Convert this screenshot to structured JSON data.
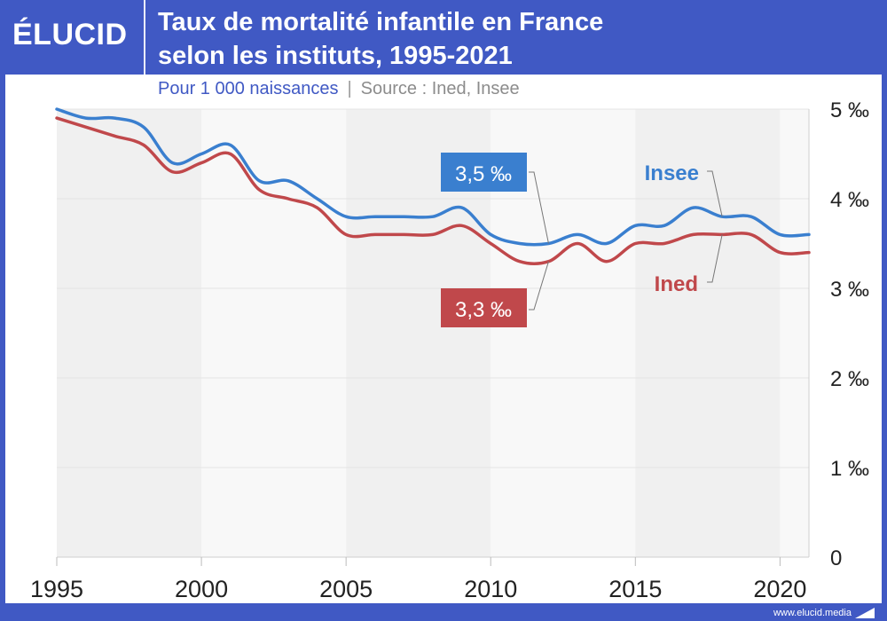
{
  "brand": {
    "logo_text": "ÉLUCID",
    "footer_url": "www.elucid.media"
  },
  "header": {
    "title_line1": "Taux de mortalité infantile en France",
    "title_line2": "selon les instituts, 1995-2021",
    "unit": "Pour 1 000 naissances",
    "separator": "|",
    "source": "Source : Ined, Insee"
  },
  "colors": {
    "header_bg": "#4059c4",
    "insee": "#3a7fcf",
    "ined": "#c0484b",
    "band_dark": "#f0f0f0",
    "band_light": "#f8f8f8"
  },
  "chart_data": {
    "type": "line",
    "title": "Taux de mortalité infantile en France selon les instituts, 1995-2021",
    "subtitle": "Pour 1 000 naissances",
    "xlabel": "",
    "ylabel": "",
    "x": [
      1995,
      1996,
      1997,
      1998,
      1999,
      2000,
      2001,
      2002,
      2003,
      2004,
      2005,
      2006,
      2007,
      2008,
      2009,
      2010,
      2011,
      2012,
      2013,
      2014,
      2015,
      2016,
      2017,
      2018,
      2019,
      2020,
      2021
    ],
    "xlim": [
      1995,
      2021
    ],
    "ylim": [
      0,
      5
    ],
    "x_ticks": [
      1995,
      2000,
      2005,
      2010,
      2015,
      2020
    ],
    "x_tick_labels": [
      "1995",
      "2000",
      "2005",
      "2010",
      "2015",
      "2020"
    ],
    "y_ticks": [
      0,
      1,
      2,
      3,
      4,
      5
    ],
    "y_tick_labels": [
      "0",
      "1 ‰",
      "2 ‰",
      "3 ‰",
      "4 ‰",
      "5 ‰"
    ],
    "y_axis_side": "right",
    "grid": true,
    "series": [
      {
        "name": "Insee",
        "color": "#3a7fcf",
        "values": [
          5.0,
          4.9,
          4.9,
          4.8,
          4.4,
          4.5,
          4.6,
          4.2,
          4.2,
          4.0,
          3.8,
          3.8,
          3.8,
          3.8,
          3.9,
          3.6,
          3.5,
          3.5,
          3.6,
          3.5,
          3.7,
          3.7,
          3.9,
          3.8,
          3.8,
          3.6,
          3.6
        ]
      },
      {
        "name": "Ined",
        "color": "#c0484b",
        "values": [
          4.9,
          4.8,
          4.7,
          4.6,
          4.3,
          4.4,
          4.5,
          4.1,
          4.0,
          3.9,
          3.6,
          3.6,
          3.6,
          3.6,
          3.7,
          3.5,
          3.3,
          3.3,
          3.5,
          3.3,
          3.5,
          3.5,
          3.6,
          3.6,
          3.6,
          3.4,
          3.4
        ]
      }
    ],
    "annotations": [
      {
        "text": "3,5 ‰",
        "series": "Insee",
        "x": 2012,
        "style": "boxed"
      },
      {
        "text": "3,3 ‰",
        "series": "Ined",
        "x": 2012,
        "style": "boxed"
      },
      {
        "text": "Insee",
        "series": "Insee",
        "x": 2018,
        "style": "label"
      },
      {
        "text": "Ined",
        "series": "Ined",
        "x": 2018,
        "style": "label"
      }
    ],
    "legend": "inline"
  }
}
